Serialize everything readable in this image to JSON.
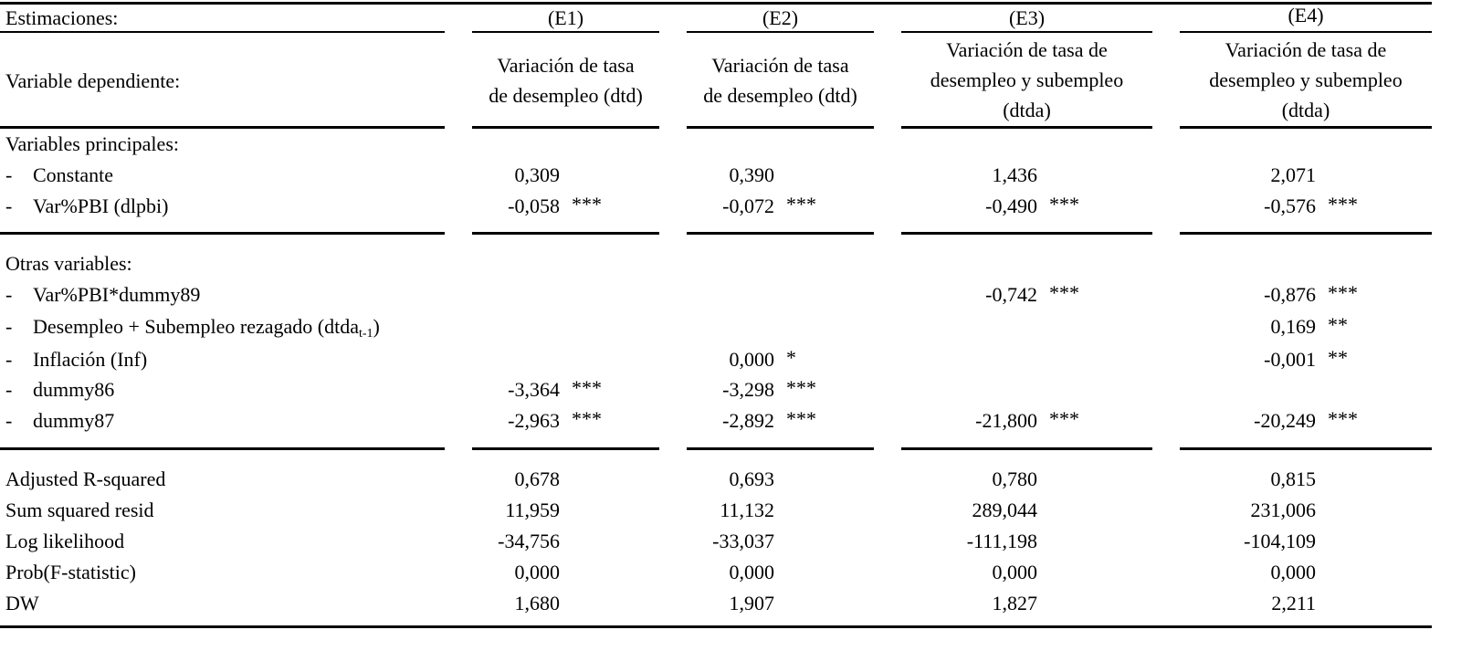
{
  "header": {
    "estimaciones_label": "Estimaciones:",
    "columns": [
      "(E1)",
      "(E2)",
      "(E3)",
      "(E4)"
    ],
    "dependent_label": "Variable dependiente:",
    "dependent": [
      [
        "Variación de tasa",
        "de desempleo (dtd)"
      ],
      [
        "Variación de tasa",
        "de desempleo (dtd)"
      ],
      [
        "Variación de tasa de",
        "desempleo y subempleo",
        "(dtda)"
      ],
      [
        "Variación de tasa de",
        "desempleo y subempleo",
        "(dtda)"
      ]
    ]
  },
  "sections": {
    "principales_label": "Variables principales:",
    "otras_label": "Otras variables:",
    "dash": "-"
  },
  "rows": {
    "constante": {
      "label": "Constante",
      "values": [
        "0,309",
        "0,390",
        "1,436",
        "2,071"
      ],
      "stars": [
        "",
        "",
        "",
        ""
      ]
    },
    "varpbi": {
      "label": "Var%PBI (dlpbi)",
      "values": [
        "-0,058",
        "-0,072",
        "-0,490",
        "-0,576"
      ],
      "stars": [
        "***",
        "***",
        "***",
        "***"
      ]
    },
    "varpbi_dummy": {
      "label": "Var%PBI*dummy89",
      "values": [
        "",
        "",
        "-0,742",
        "-0,876"
      ],
      "stars": [
        "",
        "",
        "***",
        "***"
      ]
    },
    "rezagado": {
      "label": "Desempleo + Subempleo rezagado (dtda",
      "label_sub": "t-1",
      "label_end": ")",
      "values": [
        "",
        "",
        "",
        "0,169"
      ],
      "stars": [
        "",
        "",
        "",
        "**"
      ]
    },
    "inflacion": {
      "label": "Inflación (Inf)",
      "values": [
        "",
        "0,000",
        "",
        "-0,001"
      ],
      "stars": [
        "",
        "*",
        "",
        "**"
      ]
    },
    "dummy86": {
      "label": "dummy86",
      "values": [
        "-3,364",
        "-3,298",
        "",
        ""
      ],
      "stars": [
        "***",
        "***",
        "",
        ""
      ]
    },
    "dummy87": {
      "label": "dummy87",
      "values": [
        "-2,963",
        "-2,892",
        "-21,800",
        "-20,249"
      ],
      "stars": [
        "***",
        "***",
        "***",
        "***"
      ]
    }
  },
  "stats": {
    "adj_r2": {
      "label": "Adjusted R-squared",
      "values": [
        "0,678",
        "0,693",
        "0,780",
        "0,815"
      ]
    },
    "ssr": {
      "label": "Sum squared resid",
      "values": [
        "11,959",
        "11,132",
        "289,044",
        "231,006"
      ]
    },
    "loglik": {
      "label": "Log likelihood",
      "values": [
        "-34,756",
        "-33,037",
        "-111,198",
        "-104,109"
      ]
    },
    "probf": {
      "label": "Prob(F-statistic)",
      "values": [
        "0,000",
        "0,000",
        "0,000",
        "0,000"
      ]
    },
    "dw": {
      "label": "DW",
      "values": [
        "1,680",
        "1,907",
        "1,827",
        "2,211"
      ]
    }
  }
}
